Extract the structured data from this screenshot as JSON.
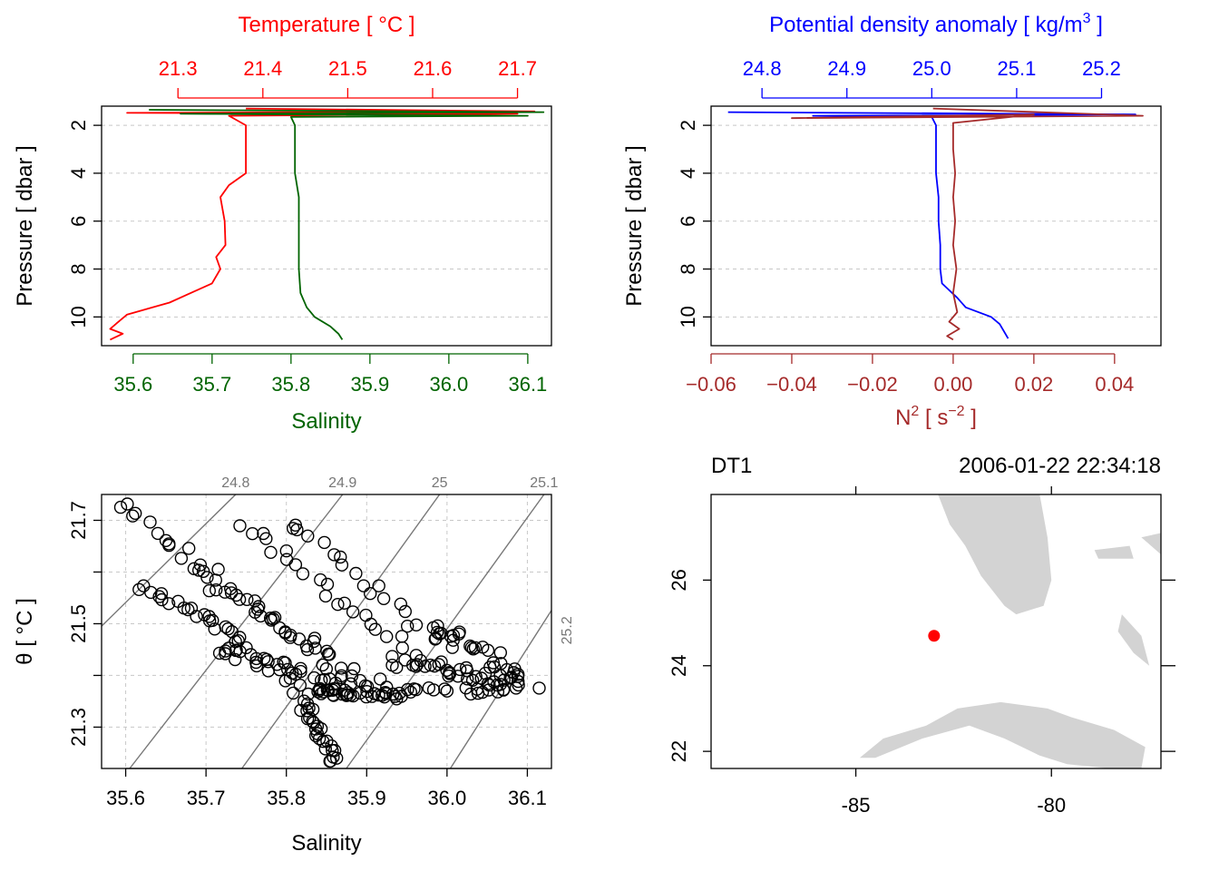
{
  "colors": {
    "temperature": "#ff0000",
    "salinity": "#006400",
    "density": "#0000ff",
    "n2": "#a52a2a",
    "land": "#d3d3d3",
    "station": "#ff0000"
  },
  "chart_data": [
    {
      "type": "line",
      "panel": "profile-temperature-salinity",
      "ylabel": "Pressure [ dbar ]",
      "ylim": [
        11.2,
        1.2
      ],
      "yticks": [
        2,
        4,
        6,
        8,
        10
      ],
      "grid": true,
      "top_axis": {
        "label": "Temperature [ °C ]",
        "range": [
          21.21,
          21.74
        ],
        "ticks": [
          "21.3",
          "21.4",
          "21.5",
          "21.6",
          "21.7"
        ],
        "tick_values": [
          21.3,
          21.4,
          21.5,
          21.6,
          21.7
        ]
      },
      "bottom_axis": {
        "label": "Salinity",
        "range": [
          35.56,
          36.13
        ],
        "ticks": [
          "35.6",
          "35.7",
          "35.8",
          "35.9",
          "36.0",
          "36.1"
        ],
        "tick_values": [
          35.6,
          35.7,
          35.8,
          35.9,
          36.0,
          36.1
        ]
      },
      "series": [
        {
          "key": "temperature",
          "axis": "top",
          "points": [
            [
              21.38,
              1.3
            ],
            [
              21.72,
              1.42
            ],
            [
              21.24,
              1.48
            ],
            [
              21.7,
              1.52
            ],
            [
              21.36,
              1.6
            ],
            [
              21.38,
              2.0
            ],
            [
              21.38,
              3.0
            ],
            [
              21.38,
              4.0
            ],
            [
              21.36,
              4.5
            ],
            [
              21.35,
              5.0
            ],
            [
              21.355,
              6.0
            ],
            [
              21.356,
              7.0
            ],
            [
              21.345,
              7.5
            ],
            [
              21.35,
              8.0
            ],
            [
              21.34,
              8.6
            ],
            [
              21.315,
              9.0
            ],
            [
              21.29,
              9.4
            ],
            [
              21.27,
              9.6
            ],
            [
              21.24,
              9.9
            ],
            [
              21.23,
              10.2
            ],
            [
              21.22,
              10.5
            ],
            [
              21.235,
              10.7
            ],
            [
              21.22,
              10.95
            ]
          ]
        },
        {
          "key": "salinity",
          "axis": "bottom",
          "points": [
            [
              35.62,
              1.35
            ],
            [
              36.12,
              1.45
            ],
            [
              35.66,
              1.52
            ],
            [
              36.1,
              1.6
            ],
            [
              35.8,
              1.65
            ],
            [
              35.805,
              2.0
            ],
            [
              35.805,
              3.0
            ],
            [
              35.805,
              4.0
            ],
            [
              35.81,
              5.0
            ],
            [
              35.81,
              6.0
            ],
            [
              35.81,
              7.0
            ],
            [
              35.81,
              8.0
            ],
            [
              35.812,
              9.0
            ],
            [
              35.82,
              9.6
            ],
            [
              35.83,
              10.0
            ],
            [
              35.85,
              10.4
            ],
            [
              35.86,
              10.7
            ],
            [
              35.865,
              10.95
            ]
          ]
        }
      ]
    },
    {
      "type": "line",
      "panel": "profile-density-n2",
      "ylabel": "Pressure [ dbar ]",
      "ylim": [
        11.2,
        1.2
      ],
      "yticks": [
        2,
        4,
        6,
        8,
        10
      ],
      "grid": true,
      "top_axis": {
        "label": "Potential density anomaly [ kg/m",
        "label_sup": "3",
        "label_tail": " ]",
        "range": [
          24.74,
          25.27
        ],
        "ticks": [
          "24.8",
          "24.9",
          "25.0",
          "25.1",
          "25.2"
        ],
        "tick_values": [
          24.8,
          24.9,
          25.0,
          25.1,
          25.2
        ]
      },
      "bottom_axis": {
        "label": "N",
        "label_sup": "2",
        "label_mid": " [ s",
        "label_sup2": "−2",
        "label_tail": " ]",
        "range": [
          -0.06,
          0.0515
        ],
        "ticks": [
          "−0.06",
          "−0.04",
          "−0.02",
          "0.00",
          "0.02",
          "0.04"
        ],
        "tick_values": [
          -0.06,
          -0.04,
          -0.02,
          0.0,
          0.02,
          0.04
        ]
      },
      "series": [
        {
          "key": "density",
          "axis": "top",
          "points": [
            [
              24.76,
              1.45
            ],
            [
              25.24,
              1.55
            ],
            [
              24.86,
              1.6
            ],
            [
              25.0,
              1.65
            ],
            [
              25.005,
              2.0
            ],
            [
              25.005,
              3.0
            ],
            [
              25.005,
              4.0
            ],
            [
              25.008,
              5.0
            ],
            [
              25.008,
              6.0
            ],
            [
              25.01,
              7.0
            ],
            [
              25.01,
              8.0
            ],
            [
              25.012,
              8.6
            ],
            [
              25.03,
              9.2
            ],
            [
              25.04,
              9.6
            ],
            [
              25.07,
              10.0
            ],
            [
              25.08,
              10.3
            ],
            [
              25.085,
              10.6
            ],
            [
              25.09,
              10.9
            ]
          ]
        },
        {
          "key": "n2",
          "axis": "bottom",
          "points": [
            [
              -0.005,
              1.3
            ],
            [
              0.047,
              1.6
            ],
            [
              -0.04,
              1.7
            ],
            [
              0.02,
              1.55
            ],
            [
              0.0,
              1.9
            ],
            [
              0.0,
              3.0
            ],
            [
              0.0005,
              4.0
            ],
            [
              0.0,
              5.0
            ],
            [
              0.0005,
              6.0
            ],
            [
              0.0,
              7.0
            ],
            [
              0.0008,
              8.0
            ],
            [
              0.0,
              9.0
            ],
            [
              0.001,
              9.8
            ],
            [
              -0.001,
              10.2
            ],
            [
              0.0015,
              10.5
            ],
            [
              -0.0015,
              10.8
            ],
            [
              0.0,
              10.95
            ]
          ]
        }
      ]
    },
    {
      "type": "scatter",
      "panel": "ts-diagram",
      "xlabel": "Salinity",
      "ylabel": "θ [ °C ]",
      "xlim": [
        35.57,
        36.13
      ],
      "ylim": [
        21.22,
        21.75
      ],
      "xticks": [
        "35.6",
        "35.7",
        "35.8",
        "35.9",
        "36.0",
        "36.1"
      ],
      "xtick_values": [
        35.6,
        35.7,
        35.8,
        35.9,
        36.0,
        36.1
      ],
      "yticks": [
        "21.3",
        "21.5",
        "21.7"
      ],
      "ytick_values": [
        21.3,
        21.5,
        21.7
      ],
      "grid": true,
      "isopycnals": [
        {
          "label": "24.8",
          "S0": 35.56,
          "T0": 21.48,
          "S1": 35.75,
          "T1": 21.77
        },
        {
          "label": "24.9",
          "S0": 35.6,
          "T0": 21.21,
          "S1": 35.88,
          "T1": 21.77
        },
        {
          "label": "25",
          "S0": 35.74,
          "T0": 21.21,
          "S1": 36.0,
          "T1": 21.77
        },
        {
          "label": "25.1",
          "S0": 35.87,
          "T0": 21.21,
          "S1": 36.13,
          "T1": 21.77
        },
        {
          "label": "25.2",
          "S0": 36.0,
          "T0": 21.21,
          "S1": 36.14,
          "T1": 21.55
        }
      ],
      "clusters": [
        {
          "from": [
            35.59,
            21.73
          ],
          "to": [
            35.9,
            21.37
          ],
          "n": 36,
          "jitter": [
            0.012,
            0.012
          ]
        },
        {
          "from": [
            35.62,
            21.57
          ],
          "to": [
            35.75,
            21.47
          ],
          "n": 22,
          "jitter": [
            0.01,
            0.008
          ]
        },
        {
          "from": [
            35.68,
            21.6
          ],
          "to": [
            35.92,
            21.38
          ],
          "n": 26,
          "jitter": [
            0.012,
            0.01
          ]
        },
        {
          "from": [
            35.75,
            21.69
          ],
          "to": [
            35.97,
            21.42
          ],
          "n": 24,
          "jitter": [
            0.014,
            0.01
          ]
        },
        {
          "from": [
            35.8,
            21.7
          ],
          "to": [
            36.0,
            21.45
          ],
          "n": 20,
          "jitter": [
            0.012,
            0.01
          ]
        },
        {
          "from": [
            35.72,
            21.46
          ],
          "to": [
            35.86,
            21.37
          ],
          "n": 40,
          "jitter": [
            0.02,
            0.012
          ]
        },
        {
          "from": [
            35.82,
            21.37
          ],
          "to": [
            35.95,
            21.36
          ],
          "n": 30,
          "jitter": [
            0.015,
            0.006
          ]
        },
        {
          "from": [
            35.82,
            21.35
          ],
          "to": [
            35.86,
            21.23
          ],
          "n": 26,
          "jitter": [
            0.008,
            0.006
          ]
        },
        {
          "from": [
            35.94,
            21.43
          ],
          "to": [
            36.1,
            21.38
          ],
          "n": 36,
          "jitter": [
            0.018,
            0.012
          ]
        },
        {
          "from": [
            35.98,
            21.5
          ],
          "to": [
            36.09,
            21.4
          ],
          "n": 26,
          "jitter": [
            0.015,
            0.012
          ]
        },
        {
          "from": [
            35.93,
            21.37
          ],
          "to": [
            36.08,
            21.37
          ],
          "n": 20,
          "jitter": [
            0.015,
            0.006
          ]
        }
      ]
    },
    {
      "type": "map",
      "panel": "station-map",
      "station_name": "DT1",
      "datetime": "2006-01-22 22:34:18",
      "xlim": [
        -88.7,
        -77.2
      ],
      "ylim": [
        21.6,
        28.0
      ],
      "xticks": [
        "-85",
        "-80"
      ],
      "xtick_values": [
        -85,
        -80
      ],
      "yticks": [
        "22",
        "24",
        "26"
      ],
      "ytick_values": [
        22,
        24,
        26
      ],
      "station": {
        "lon": -83.0,
        "lat": 24.7
      },
      "land": [
        {
          "name": "florida",
          "coords": [
            [
              -82.9,
              28.0
            ],
            [
              -80.3,
              28.0
            ],
            [
              -80.1,
              27.0
            ],
            [
              -80.0,
              26.0
            ],
            [
              -80.2,
              25.4
            ],
            [
              -80.9,
              25.2
            ],
            [
              -81.2,
              25.4
            ],
            [
              -81.8,
              26.1
            ],
            [
              -82.2,
              26.8
            ],
            [
              -82.6,
              27.3
            ],
            [
              -82.9,
              28.0
            ]
          ]
        },
        {
          "name": "cuba",
          "coords": [
            [
              -84.9,
              21.85
            ],
            [
              -84.3,
              22.3
            ],
            [
              -83.2,
              22.6
            ],
            [
              -82.4,
              23.0
            ],
            [
              -81.3,
              23.15
            ],
            [
              -80.1,
              23.0
            ],
            [
              -79.5,
              22.8
            ],
            [
              -78.4,
              22.5
            ],
            [
              -77.6,
              22.1
            ],
            [
              -77.7,
              21.6
            ],
            [
              -78.5,
              21.6
            ],
            [
              -79.6,
              21.7
            ],
            [
              -80.3,
              21.9
            ],
            [
              -81.2,
              22.3
            ],
            [
              -82.1,
              22.6
            ],
            [
              -83.3,
              22.3
            ],
            [
              -84.5,
              21.85
            ],
            [
              -84.9,
              21.85
            ]
          ]
        },
        {
          "name": "bahamas-north",
          "coords": [
            [
              -78.9,
              26.7
            ],
            [
              -78.0,
              26.8
            ],
            [
              -77.9,
              26.5
            ],
            [
              -78.8,
              26.5
            ],
            [
              -78.9,
              26.7
            ]
          ]
        },
        {
          "name": "bahamas-andros",
          "coords": [
            [
              -78.2,
              25.2
            ],
            [
              -77.7,
              24.7
            ],
            [
              -77.5,
              24.0
            ],
            [
              -77.9,
              24.3
            ],
            [
              -78.3,
              24.8
            ],
            [
              -78.2,
              25.2
            ]
          ]
        },
        {
          "name": "bahamas-abaco",
          "coords": [
            [
              -77.7,
              27.0
            ],
            [
              -77.2,
              26.6
            ],
            [
              -77.2,
              27.1
            ],
            [
              -77.7,
              27.0
            ]
          ]
        }
      ]
    }
  ]
}
